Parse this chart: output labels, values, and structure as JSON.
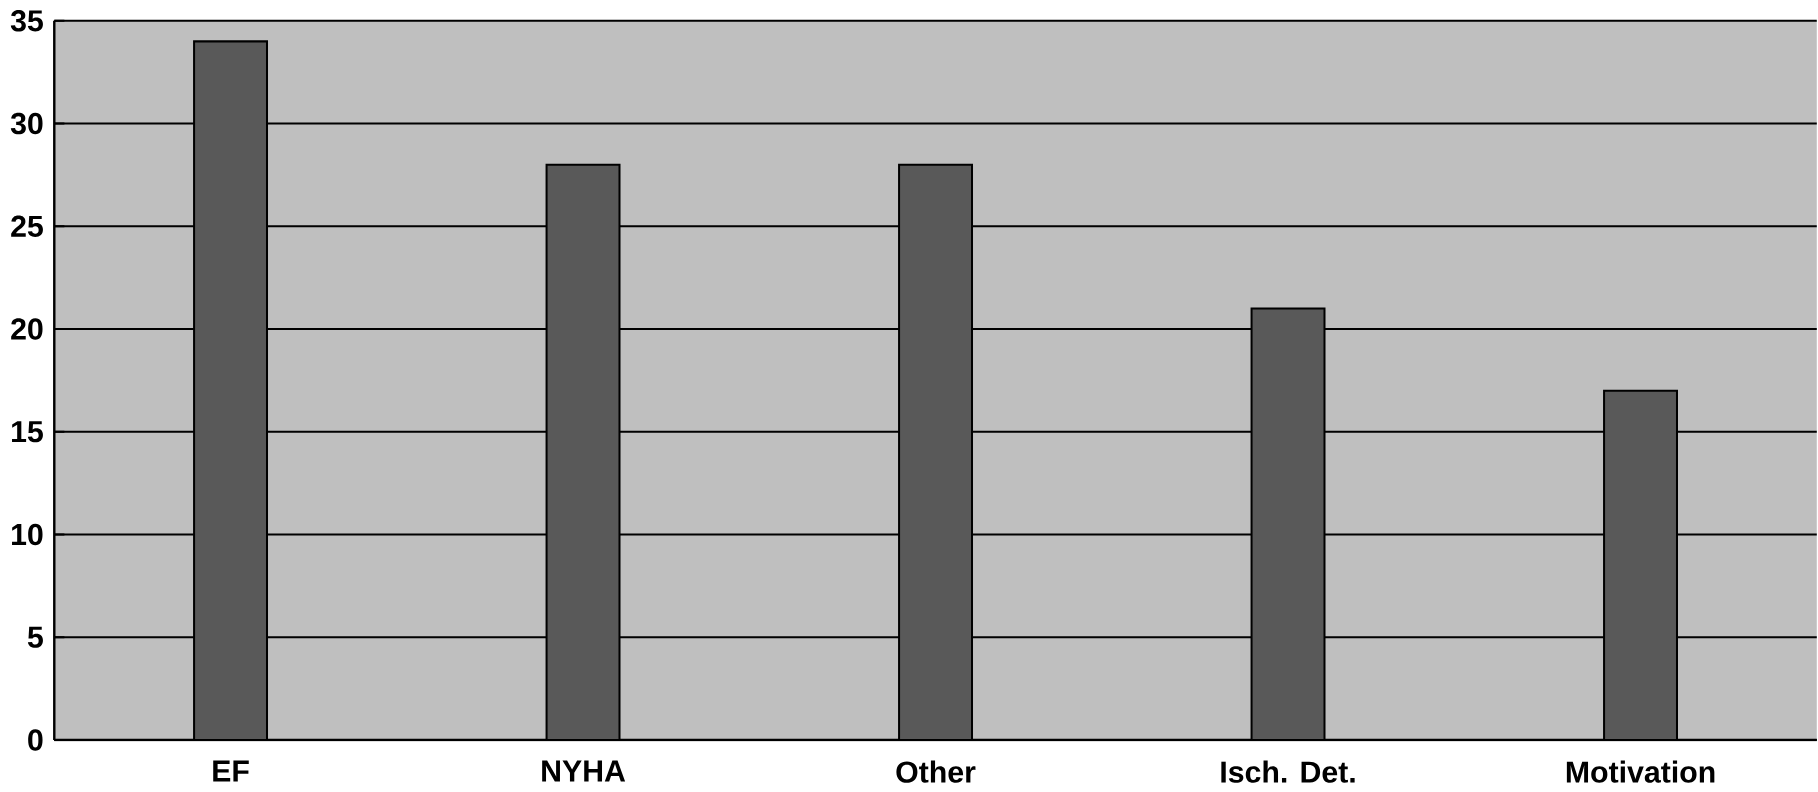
{
  "chart_data": {
    "type": "bar",
    "categories": [
      "EF",
      "NYHA",
      "Other",
      "Isch. Det.",
      "Motivation"
    ],
    "values": [
      34,
      28,
      28,
      21,
      17
    ],
    "color": "#595959",
    "ylim": [
      0,
      35
    ],
    "yticks": [
      0,
      5,
      10,
      15,
      20,
      25,
      30,
      35
    ],
    "grid": "y"
  }
}
